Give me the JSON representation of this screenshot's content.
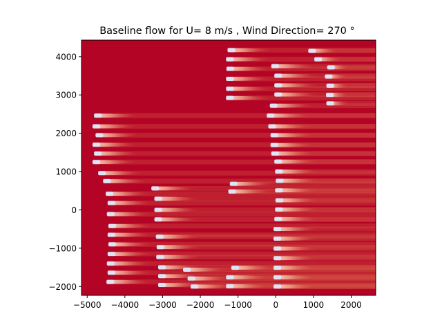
{
  "chart_data": {
    "type": "heatmap",
    "title": "Baseline flow for U= 8 m/s  ,  Wind Direction= 270  °",
    "xlabel": "",
    "ylabel": "",
    "xlim": [
      -5150,
      2650
    ],
    "ylim": [
      -2230,
      4430
    ],
    "xticks": [
      -5000,
      -4000,
      -3000,
      -2000,
      -1000,
      0,
      1000,
      2000
    ],
    "yticks": [
      -2000,
      -1000,
      0,
      1000,
      2000,
      3000,
      4000
    ],
    "xtick_labels": [
      "−5000",
      "−4000",
      "−3000",
      "−2000",
      "−1000",
      "0",
      "1000",
      "2000"
    ],
    "ytick_labels": [
      "−2000",
      "−1000",
      "0",
      "1000",
      "2000",
      "3000",
      "4000"
    ],
    "grid": false,
    "colormap": "coolwarm",
    "background_color": "#b40426",
    "wake_color": "#f5c4ac",
    "turbine_color": "#dde5f5",
    "turbines": [
      {
        "x": -4800,
        "y": 2460
      },
      {
        "x": -4840,
        "y": 2180
      },
      {
        "x": -4760,
        "y": 1950
      },
      {
        "x": -4840,
        "y": 1700
      },
      {
        "x": -4800,
        "y": 1470
      },
      {
        "x": -4840,
        "y": 1250
      },
      {
        "x": -4690,
        "y": 960
      },
      {
        "x": -4560,
        "y": 750
      },
      {
        "x": -4490,
        "y": 420
      },
      {
        "x": -4440,
        "y": 180
      },
      {
        "x": -4460,
        "y": -110
      },
      {
        "x": -4420,
        "y": -420
      },
      {
        "x": -4440,
        "y": -650
      },
      {
        "x": -4420,
        "y": -900
      },
      {
        "x": -4440,
        "y": -1150
      },
      {
        "x": -4460,
        "y": -1400
      },
      {
        "x": -4440,
        "y": -1640
      },
      {
        "x": -4470,
        "y": -1880
      },
      {
        "x": -3280,
        "y": 560
      },
      {
        "x": -3200,
        "y": 290
      },
      {
        "x": -3200,
        "y": 0
      },
      {
        "x": -3200,
        "y": -250
      },
      {
        "x": -3160,
        "y": -700
      },
      {
        "x": -3140,
        "y": -970
      },
      {
        "x": -3150,
        "y": -1230
      },
      {
        "x": -3100,
        "y": -1500
      },
      {
        "x": -3100,
        "y": -1730
      },
      {
        "x": -3100,
        "y": -1960
      },
      {
        "x": -2440,
        "y": -1560
      },
      {
        "x": -2320,
        "y": -1790
      },
      {
        "x": -2240,
        "y": -2000
      },
      {
        "x": -1260,
        "y": 4170
      },
      {
        "x": -1300,
        "y": 3930
      },
      {
        "x": -1290,
        "y": 3680
      },
      {
        "x": -1300,
        "y": 3420
      },
      {
        "x": -1300,
        "y": 3160
      },
      {
        "x": -1300,
        "y": 2920
      },
      {
        "x": -1200,
        "y": 680
      },
      {
        "x": -1240,
        "y": 480
      },
      {
        "x": -1160,
        "y": -1510
      },
      {
        "x": -1300,
        "y": -1760
      },
      {
        "x": -1300,
        "y": -1990
      },
      {
        "x": -220,
        "y": 2460
      },
      {
        "x": -180,
        "y": 2180
      },
      {
        "x": -120,
        "y": 1950
      },
      {
        "x": -120,
        "y": 1690
      },
      {
        "x": -100,
        "y": 1470
      },
      {
        "x": -20,
        "y": 1260
      },
      {
        "x": 0,
        "y": 1000
      },
      {
        "x": 20,
        "y": 760
      },
      {
        "x": 0,
        "y": 510
      },
      {
        "x": 10,
        "y": 250
      },
      {
        "x": 0,
        "y": 10
      },
      {
        "x": -20,
        "y": -240
      },
      {
        "x": -40,
        "y": -500
      },
      {
        "x": -40,
        "y": -750
      },
      {
        "x": -40,
        "y": -1010
      },
      {
        "x": -40,
        "y": -1260
      },
      {
        "x": -40,
        "y": -1510
      },
      {
        "x": -40,
        "y": -1760
      },
      {
        "x": -40,
        "y": -2000
      },
      {
        "x": -100,
        "y": 3750
      },
      {
        "x": -20,
        "y": 3500
      },
      {
        "x": -20,
        "y": 3250
      },
      {
        "x": -20,
        "y": 3010
      },
      {
        "x": -140,
        "y": 2720
      },
      {
        "x": 880,
        "y": 4150
      },
      {
        "x": 1040,
        "y": 3930
      },
      {
        "x": 1380,
        "y": 3720
      },
      {
        "x": 1320,
        "y": 3480
      },
      {
        "x": 1360,
        "y": 3240
      },
      {
        "x": 1350,
        "y": 3000
      },
      {
        "x": 1360,
        "y": 2780
      }
    ]
  }
}
